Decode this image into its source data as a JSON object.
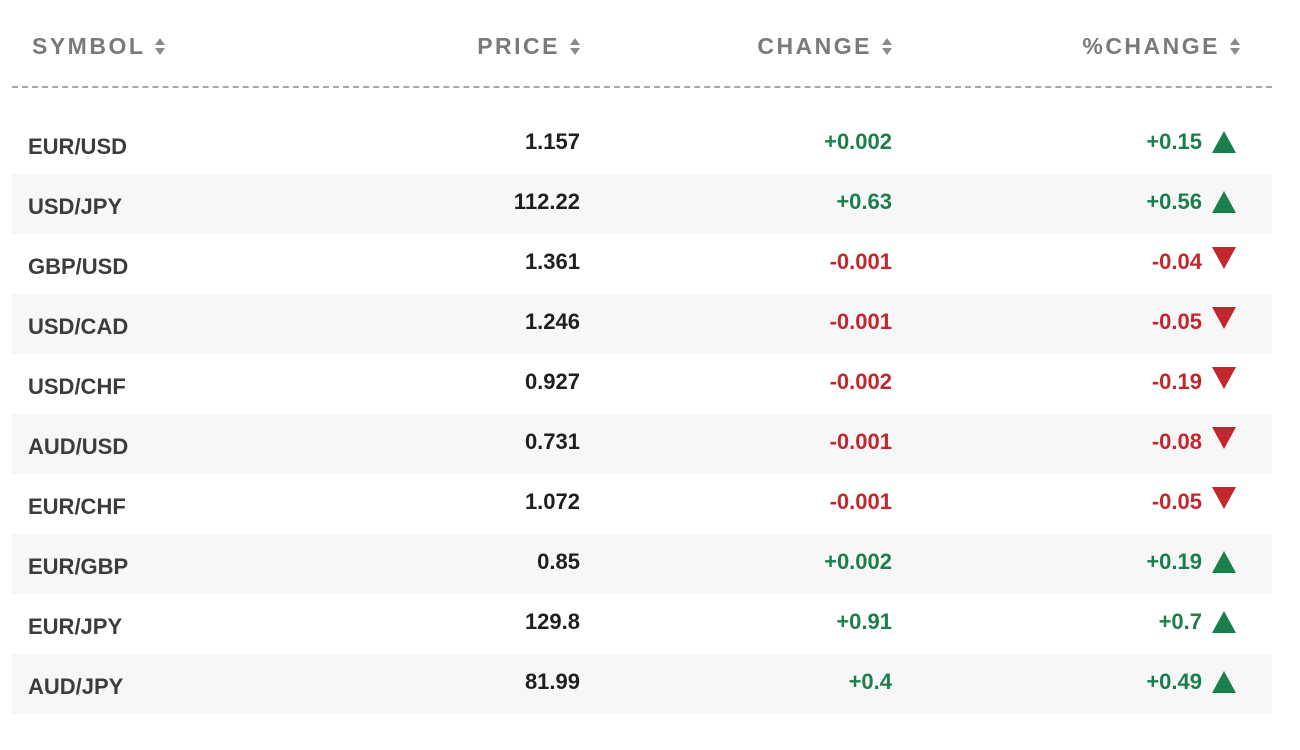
{
  "colors": {
    "positive": "#1a7f4b",
    "negative": "#c4262e",
    "header_text": "#7a7a7a",
    "row_alt_bg": "#f7f7f7"
  },
  "columns": {
    "symbol": "SYMBOL",
    "price": "PRICE",
    "change": "CHANGE",
    "pct_change": "%CHANGE"
  },
  "rows": [
    {
      "symbol": "EUR/USD",
      "price": "1.157",
      "change": "+0.002",
      "pct_change": "+0.15",
      "direction": "up"
    },
    {
      "symbol": "USD/JPY",
      "price": "112.22",
      "change": "+0.63",
      "pct_change": "+0.56",
      "direction": "up"
    },
    {
      "symbol": "GBP/USD",
      "price": "1.361",
      "change": "-0.001",
      "pct_change": "-0.04",
      "direction": "down"
    },
    {
      "symbol": "USD/CAD",
      "price": "1.246",
      "change": "-0.001",
      "pct_change": "-0.05",
      "direction": "down"
    },
    {
      "symbol": "USD/CHF",
      "price": "0.927",
      "change": "-0.002",
      "pct_change": "-0.19",
      "direction": "down"
    },
    {
      "symbol": "AUD/USD",
      "price": "0.731",
      "change": "-0.001",
      "pct_change": "-0.08",
      "direction": "down"
    },
    {
      "symbol": "EUR/CHF",
      "price": "1.072",
      "change": "-0.001",
      "pct_change": "-0.05",
      "direction": "down"
    },
    {
      "symbol": "EUR/GBP",
      "price": "0.85",
      "change": "+0.002",
      "pct_change": "+0.19",
      "direction": "up"
    },
    {
      "symbol": "EUR/JPY",
      "price": "129.8",
      "change": "+0.91",
      "pct_change": "+0.7",
      "direction": "up"
    },
    {
      "symbol": "AUD/JPY",
      "price": "81.99",
      "change": "+0.4",
      "pct_change": "+0.49",
      "direction": "up"
    }
  ]
}
